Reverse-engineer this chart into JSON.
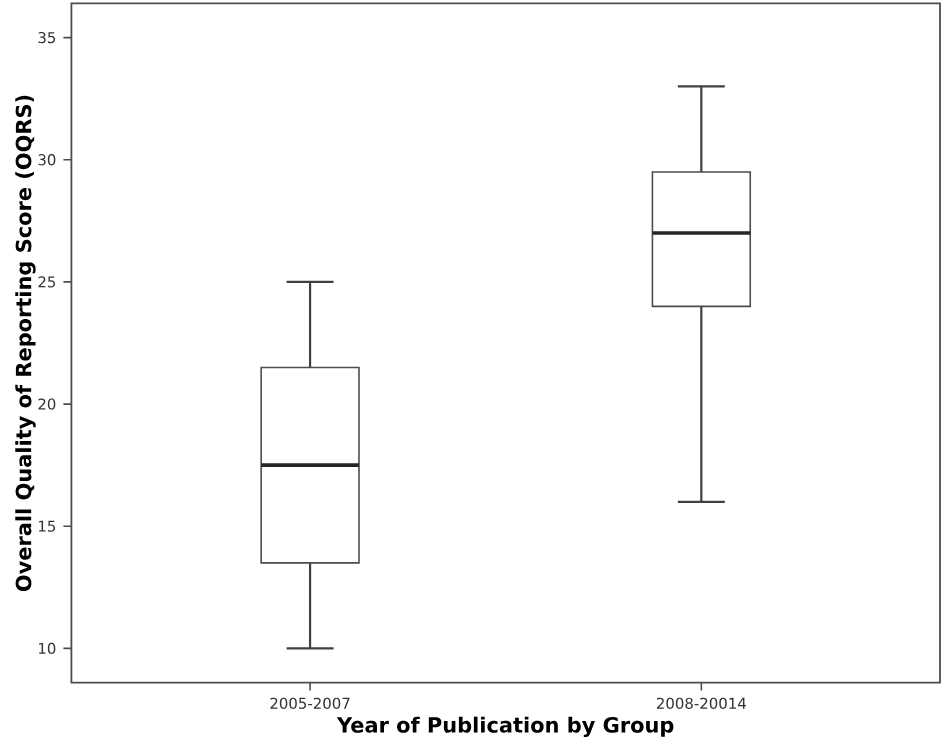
{
  "chart_data": {
    "type": "box",
    "xlabel": "Year of Publication by Group",
    "ylabel": "Overall Quality of Reporting Score (OQRS)",
    "categories": [
      "2005-2007",
      "2008-20014"
    ],
    "boxes": [
      {
        "low": 10,
        "q1": 13.5,
        "median": 17.5,
        "q3": 21.5,
        "high": 25
      },
      {
        "low": 16,
        "q1": 24,
        "median": 27,
        "q3": 29.5,
        "high": 33
      }
    ],
    "ylim": [
      8.6,
      36.4
    ],
    "yticks": [
      10,
      15,
      20,
      25,
      30,
      35
    ],
    "grid": false
  }
}
